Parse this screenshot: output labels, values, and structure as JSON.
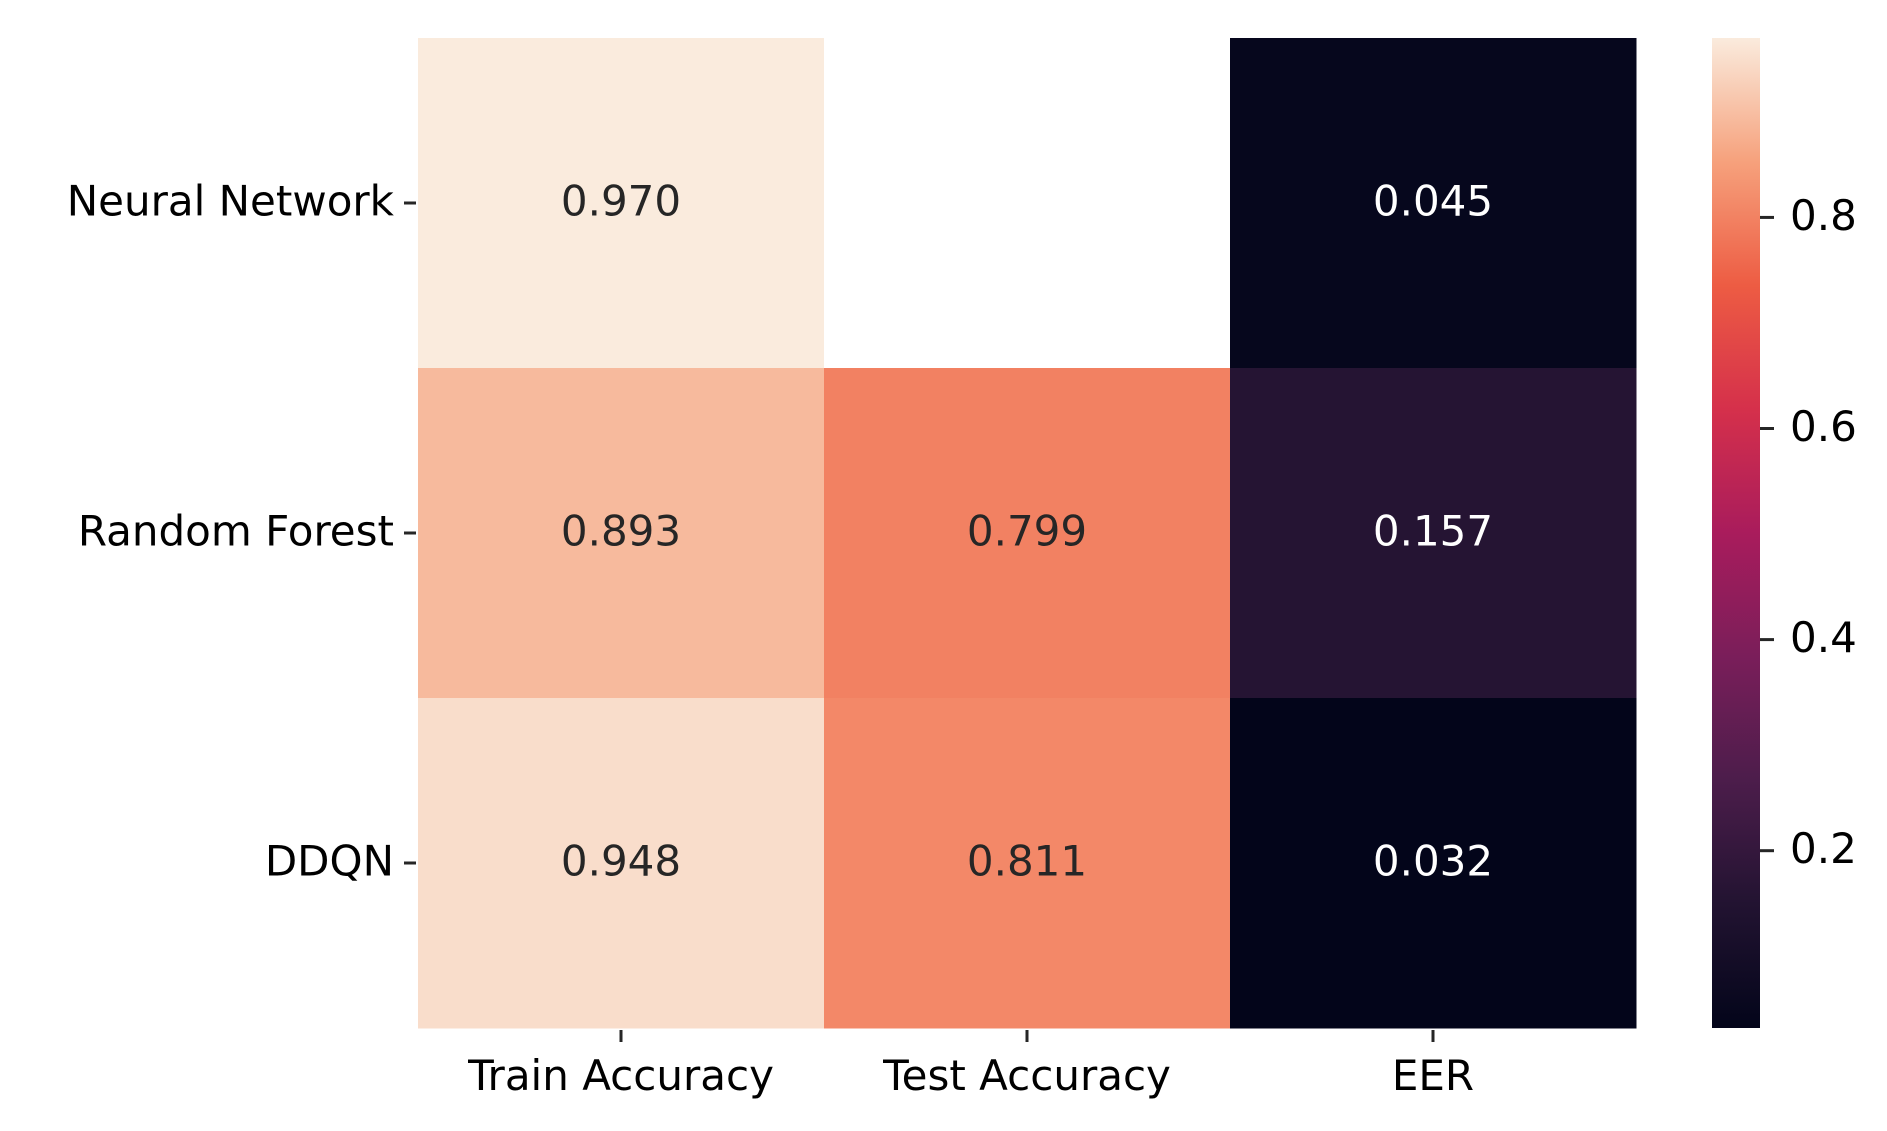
{
  "chart_data": {
    "type": "heatmap",
    "rows": [
      "Neural Network",
      "Random Forest",
      "DDQN"
    ],
    "columns": [
      "Train Accuracy",
      "Test Accuracy",
      "EER"
    ],
    "values": [
      [
        0.97,
        null,
        0.045
      ],
      [
        0.893,
        0.799,
        0.157
      ],
      [
        0.948,
        0.811,
        0.032
      ]
    ],
    "labels": [
      [
        "0.970",
        "",
        "0.045"
      ],
      [
        "0.893",
        "0.799",
        "0.157"
      ],
      [
        "0.948",
        "0.811",
        "0.032"
      ]
    ],
    "colormap": "rocket",
    "colorbar": {
      "vmin": 0.032,
      "vmax": 0.97,
      "ticks": [
        0.2,
        0.4,
        0.6,
        0.8
      ],
      "tick_labels": [
        "0.2",
        "0.4",
        "0.6",
        "0.8"
      ]
    },
    "missing_cell_color": "#ffffff"
  }
}
